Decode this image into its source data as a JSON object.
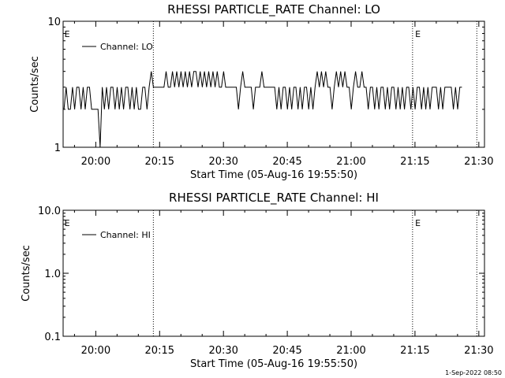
{
  "footer_timestamp": "1-Sep-2022 08:50",
  "chart_data": [
    {
      "type": "line",
      "title": "RHESSI PARTICLE_RATE Channel: LO",
      "xlabel": "Start Time (05-Aug-16 19:55:50)",
      "ylabel": "Counts/sec",
      "yscale": "log",
      "xlim_minutes": [
        -3.5,
        95.5
      ],
      "ylim": [
        1,
        10
      ],
      "x_ticks": [
        {
          "t": 4.17,
          "label": "20:00"
        },
        {
          "t": 19.17,
          "label": "20:15"
        },
        {
          "t": 34.17,
          "label": "20:30"
        },
        {
          "t": 49.17,
          "label": "20:45"
        },
        {
          "t": 64.17,
          "label": "21:00"
        },
        {
          "t": 79.17,
          "label": "21:15"
        },
        {
          "t": 94.17,
          "label": "21:30"
        }
      ],
      "y_ticks": [
        {
          "v": 1,
          "label": "1"
        },
        {
          "v": 10,
          "label": "10"
        }
      ],
      "vlines_minutes": [
        17.7,
        78.6,
        93.7
      ],
      "event_markers": [
        {
          "t": -3.2,
          "label": "E"
        },
        {
          "t": 79.2,
          "label": "E"
        }
      ],
      "legend": {
        "position": "top-left",
        "entries": [
          "Channel: LO"
        ]
      },
      "series": [
        {
          "name": "Channel: LO",
          "x_start_minutes": -3.3,
          "x_step_minutes": 0.5,
          "values": [
            2,
            3,
            2,
            2,
            3,
            2,
            3,
            3,
            2,
            3,
            2,
            3,
            3,
            2,
            2,
            2,
            2,
            1,
            3,
            2,
            3,
            2,
            3,
            3,
            2,
            3,
            2,
            3,
            2,
            3,
            3,
            2,
            3,
            2,
            3,
            2,
            2,
            3,
            3,
            2,
            3,
            4,
            3,
            3,
            3,
            3,
            3,
            3,
            4,
            3,
            3,
            4,
            3,
            4,
            3,
            4,
            3,
            4,
            3,
            4,
            3,
            4,
            4,
            3,
            4,
            3,
            4,
            3,
            4,
            3,
            4,
            3,
            4,
            3,
            3,
            4,
            3,
            3,
            3,
            3,
            3,
            3,
            2,
            3,
            4,
            3,
            3,
            3,
            3,
            2,
            3,
            3,
            3,
            4,
            3,
            3,
            3,
            3,
            3,
            3,
            2,
            3,
            2,
            3,
            3,
            2,
            3,
            2,
            3,
            3,
            2,
            3,
            2,
            3,
            3,
            2,
            3,
            2,
            3,
            4,
            3,
            4,
            3,
            4,
            3,
            3,
            2,
            3,
            4,
            3,
            4,
            3,
            4,
            3,
            3,
            2,
            3,
            4,
            3,
            3,
            4,
            3,
            3,
            2,
            3,
            3,
            2,
            3,
            2,
            3,
            3,
            2,
            3,
            2,
            3,
            3,
            2,
            3,
            2,
            3,
            2,
            3,
            3,
            2,
            3,
            2,
            3,
            3,
            2,
            3,
            2,
            3,
            2,
            3,
            3,
            3,
            2,
            3,
            2,
            3,
            3,
            3,
            3,
            2,
            3,
            2,
            3,
            3
          ]
        }
      ]
    },
    {
      "type": "line",
      "title": "RHESSI PARTICLE_RATE Channel: HI",
      "xlabel": "Start Time (05-Aug-16 19:55:50)",
      "ylabel": "Counts/sec",
      "yscale": "log",
      "xlim_minutes": [
        -3.5,
        95.5
      ],
      "ylim": [
        0.1,
        10
      ],
      "x_ticks": [
        {
          "t": 4.17,
          "label": "20:00"
        },
        {
          "t": 19.17,
          "label": "20:15"
        },
        {
          "t": 34.17,
          "label": "20:30"
        },
        {
          "t": 49.17,
          "label": "20:45"
        },
        {
          "t": 64.17,
          "label": "21:00"
        },
        {
          "t": 79.17,
          "label": "21:15"
        },
        {
          "t": 94.17,
          "label": "21:30"
        }
      ],
      "y_ticks": [
        {
          "v": 0.1,
          "label": "0.1"
        },
        {
          "v": 1,
          "label": "1.0"
        },
        {
          "v": 10,
          "label": "10.0"
        }
      ],
      "vlines_minutes": [
        17.7,
        78.6,
        93.7
      ],
      "event_markers": [
        {
          "t": -3.2,
          "label": "E"
        },
        {
          "t": 79.2,
          "label": "E"
        }
      ],
      "legend": {
        "position": "top-left",
        "entries": [
          "Channel: HI"
        ]
      },
      "series": [
        {
          "name": "Channel: HI",
          "values": []
        }
      ]
    }
  ]
}
